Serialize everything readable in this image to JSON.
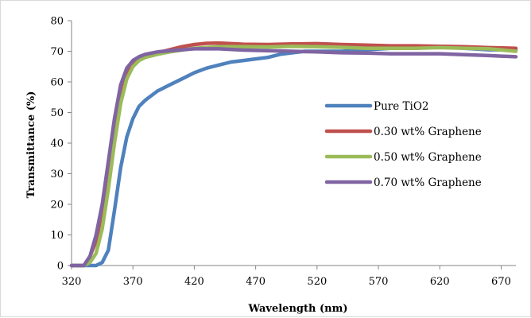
{
  "chart_data": {
    "type": "line",
    "title": "",
    "xlabel": "Wavelength (nm)",
    "ylabel": "Transmittance (%)",
    "xlim": [
      320,
      682
    ],
    "ylim": [
      0,
      80
    ],
    "xticks": [
      320,
      370,
      420,
      470,
      520,
      570,
      620,
      670
    ],
    "yticks": [
      0,
      10,
      20,
      30,
      40,
      50,
      60,
      70,
      80
    ],
    "grid": false,
    "legend_position": "right",
    "series": [
      {
        "name": "Pure TiO2",
        "color": "#4f81bd",
        "x": [
          320,
          330,
          340,
          345,
          350,
          355,
          360,
          365,
          370,
          375,
          380,
          390,
          400,
          410,
          420,
          430,
          440,
          450,
          460,
          470,
          480,
          490,
          500,
          510,
          520,
          540,
          560,
          580,
          600,
          620,
          640,
          660,
          682
        ],
        "y": [
          0,
          0,
          0,
          1,
          5,
          18,
          32,
          42,
          48,
          52,
          54,
          57,
          59,
          61,
          63,
          64.5,
          65.5,
          66.5,
          67,
          67.5,
          68,
          69,
          69.5,
          70,
          70,
          70,
          70.5,
          71,
          71,
          71.5,
          71,
          70.5,
          70.5
        ]
      },
      {
        "name": "0.30 wt% Graphene",
        "color": "#c0504d",
        "x": [
          320,
          330,
          335,
          340,
          345,
          350,
          355,
          360,
          365,
          370,
          375,
          380,
          390,
          400,
          410,
          420,
          430,
          440,
          460,
          480,
          500,
          520,
          540,
          560,
          580,
          600,
          620,
          640,
          660,
          682
        ],
        "y": [
          0,
          0,
          3,
          8,
          18,
          32,
          46,
          57,
          63,
          66,
          67.5,
          68.5,
          69.5,
          70.5,
          71.5,
          72.2,
          72.6,
          72.7,
          72.3,
          72.2,
          72.4,
          72.5,
          72.2,
          72,
          71.8,
          71.8,
          71.6,
          71.5,
          71.2,
          71
        ]
      },
      {
        "name": "0.50 wt% Graphene",
        "color": "#9bbb59",
        "x": [
          320,
          330,
          335,
          340,
          345,
          350,
          355,
          360,
          365,
          370,
          375,
          380,
          390,
          400,
          410,
          420,
          440,
          460,
          480,
          500,
          520,
          540,
          560,
          580,
          600,
          620,
          640,
          660,
          682
        ],
        "y": [
          0,
          0,
          1,
          4,
          12,
          25,
          40,
          53,
          61,
          65,
          67,
          68,
          69,
          69.8,
          70.4,
          71,
          71.5,
          71.5,
          71.4,
          71.6,
          71.5,
          71.3,
          71,
          71,
          71,
          71.2,
          71,
          70.8,
          70
        ]
      },
      {
        "name": "0.70 wt% Graphene",
        "color": "#8064a2",
        "x": [
          320,
          330,
          335,
          340,
          345,
          350,
          355,
          360,
          365,
          370,
          375,
          380,
          390,
          400,
          410,
          420,
          440,
          460,
          480,
          500,
          520,
          540,
          560,
          580,
          600,
          620,
          640,
          660,
          682
        ],
        "y": [
          0,
          0,
          3,
          10,
          20,
          34,
          48,
          59,
          64.5,
          67,
          68.2,
          69,
          69.8,
          70.2,
          70.5,
          70.8,
          70.8,
          70.4,
          70.2,
          70,
          69.8,
          69.5,
          69.4,
          69.2,
          69.2,
          69.2,
          68.9,
          68.6,
          68.2
        ]
      }
    ]
  }
}
